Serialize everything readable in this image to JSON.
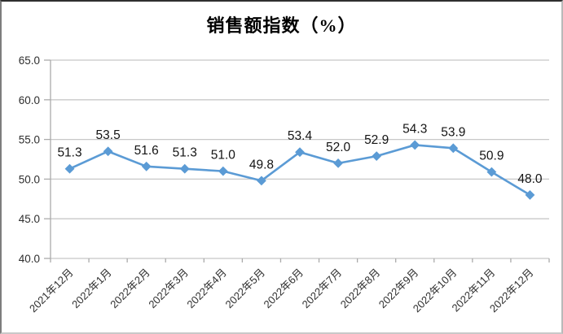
{
  "chart_data": {
    "type": "line",
    "title": "销售额指数（%）",
    "categories": [
      "2021年12月",
      "2022年1月",
      "2022年2月",
      "2022年3月",
      "2022年4月",
      "2022年5月",
      "2022年6月",
      "2022年7月",
      "2022年8月",
      "2022年9月",
      "2022年10月",
      "2022年11月",
      "2022年12月"
    ],
    "values": [
      51.3,
      53.5,
      51.6,
      51.3,
      51.0,
      49.8,
      53.4,
      52.0,
      52.9,
      54.3,
      53.9,
      50.9,
      48.0
    ],
    "data_labels": [
      "51.3",
      "53.5",
      "51.6",
      "51.3",
      "51.0",
      "49.8",
      "53.4",
      "52.0",
      "52.9",
      "54.3",
      "53.9",
      "50.9",
      "48.0"
    ],
    "xlabel": "",
    "ylabel": "",
    "ylim": [
      40.0,
      65.0
    ],
    "yticks": [
      40.0,
      45.0,
      50.0,
      55.0,
      60.0,
      65.0
    ],
    "ytick_labels": [
      "40.0",
      "45.0",
      "50.0",
      "55.0",
      "60.0",
      "65.0"
    ],
    "grid": true,
    "legend": "none",
    "marker": "diamond",
    "line_color": "#5B9BD5",
    "gridline_color": "#C8C8C8",
    "axis_color": "#ABABAB",
    "text_color": "#2e2e2e",
    "data_label_color": "#141414"
  }
}
